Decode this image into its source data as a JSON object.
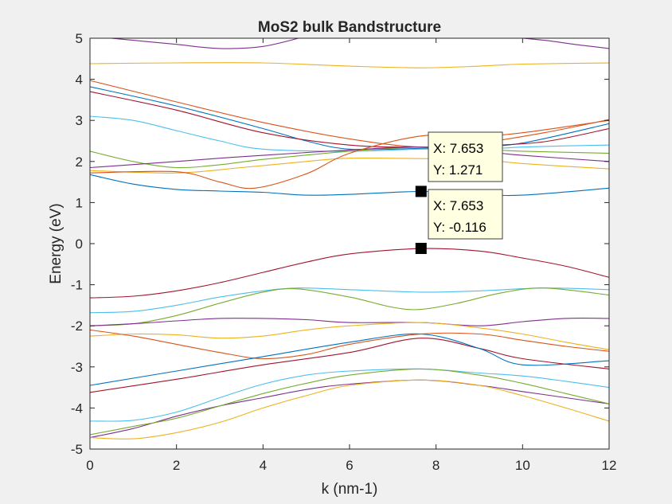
{
  "chart_data": {
    "type": "line",
    "title": "MoS2 bulk Bandstructure",
    "xlabel": "k (nm-1)",
    "ylabel": "Energy (eV)",
    "xlim": [
      0,
      12
    ],
    "ylim": [
      -5,
      5
    ],
    "xticks": [
      "0",
      "2",
      "4",
      "6",
      "8",
      "10",
      "12"
    ],
    "yticks": [
      "5",
      "4",
      "3",
      "2",
      "1",
      "0",
      "-1",
      "-2",
      "-3",
      "-4",
      "-5"
    ],
    "grid": false,
    "legend": "none",
    "colors": {
      "blue": "#0072BD",
      "orange": "#D95319",
      "yellow": "#EDB120",
      "purple": "#7E2F8E",
      "green": "#77AC30",
      "cyan": "#4DBEEE",
      "red": "#A2142F"
    },
    "series": [
      {
        "color": "purple",
        "x": [
          0,
          1,
          2,
          3,
          4,
          5
        ],
        "y": [
          5.05,
          4.95,
          4.85,
          4.75,
          4.8,
          5.05
        ]
      },
      {
        "color": "purple",
        "x": [
          9.5,
          10.5,
          11.2,
          12
        ],
        "y": [
          5.05,
          4.95,
          4.85,
          4.75
        ]
      },
      {
        "color": "yellow",
        "x": [
          0,
          2,
          4,
          6,
          7.65,
          9,
          10,
          12
        ],
        "y": [
          4.38,
          4.4,
          4.4,
          4.32,
          4.28,
          4.32,
          4.37,
          4.4
        ]
      },
      {
        "color": "orange",
        "x": [
          0,
          2,
          4,
          6,
          7.65,
          9,
          10.5,
          12
        ],
        "y": [
          3.97,
          3.45,
          2.95,
          2.55,
          2.35,
          2.45,
          2.7,
          3.02
        ]
      },
      {
        "color": "blue",
        "x": [
          0,
          2,
          4,
          5,
          6,
          7.65,
          9,
          10,
          12
        ],
        "y": [
          3.82,
          3.35,
          2.8,
          2.5,
          2.3,
          2.32,
          2.37,
          2.45,
          2.92
        ]
      },
      {
        "color": "red",
        "x": [
          0,
          2,
          4,
          6,
          7.65,
          9,
          10.5,
          12
        ],
        "y": [
          3.7,
          3.25,
          2.7,
          2.4,
          2.35,
          2.38,
          2.48,
          2.8
        ]
      },
      {
        "color": "cyan",
        "x": [
          0,
          1,
          2,
          3,
          4,
          6,
          7.65,
          9,
          10,
          11,
          12
        ],
        "y": [
          3.1,
          3.0,
          2.75,
          2.5,
          2.3,
          2.25,
          2.3,
          2.3,
          2.35,
          2.38,
          2.4
        ]
      },
      {
        "color": "green",
        "x": [
          0,
          1,
          2,
          3,
          4,
          6,
          7.65,
          9,
          10,
          12
        ],
        "y": [
          2.25,
          2.0,
          1.85,
          1.92,
          2.05,
          2.25,
          2.35,
          2.3,
          2.25,
          2.2
        ]
      },
      {
        "color": "purple",
        "x": [
          0,
          2,
          3,
          4,
          6,
          7.65,
          9,
          10,
          12
        ],
        "y": [
          1.85,
          2.0,
          2.08,
          2.15,
          2.28,
          2.35,
          2.25,
          2.15,
          2.0
        ]
      },
      {
        "color": "yellow",
        "x": [
          0,
          2,
          3.5,
          5,
          6,
          7.65,
          9,
          10,
          12
        ],
        "y": [
          1.78,
          1.72,
          1.85,
          2.0,
          2.08,
          2.07,
          2.05,
          1.95,
          1.82
        ]
      },
      {
        "color": "orange",
        "x": [
          0,
          2,
          3,
          3.8,
          5,
          6,
          7.65,
          9,
          10,
          12
        ],
        "y": [
          1.72,
          1.75,
          1.5,
          1.35,
          1.7,
          2.2,
          2.62,
          2.62,
          2.7,
          3.0
        ]
      },
      {
        "color": "blue",
        "x": [
          0,
          1,
          2,
          3,
          4,
          5,
          6,
          7.65,
          9,
          10,
          12
        ],
        "y": [
          1.68,
          1.45,
          1.32,
          1.28,
          1.25,
          1.18,
          1.2,
          1.27,
          1.2,
          1.18,
          1.35
        ]
      },
      {
        "color": "red",
        "x": [
          0,
          1,
          2,
          3,
          4,
          5,
          6,
          7.65,
          9,
          10,
          11,
          12
        ],
        "y": [
          -1.32,
          -1.28,
          -1.15,
          -0.95,
          -0.7,
          -0.45,
          -0.25,
          -0.12,
          -0.18,
          -0.35,
          -0.55,
          -0.82
        ]
      },
      {
        "color": "cyan",
        "x": [
          0,
          1,
          2,
          3,
          4,
          4.8,
          6,
          7.65,
          9,
          10.5,
          12
        ],
        "y": [
          -1.68,
          -1.65,
          -1.5,
          -1.3,
          -1.15,
          -1.08,
          -1.12,
          -1.18,
          -1.15,
          -1.08,
          -1.12
        ]
      },
      {
        "color": "green",
        "x": [
          0,
          1,
          2,
          3,
          4,
          4.8,
          6,
          7,
          7.65,
          8.5,
          9.5,
          10.5,
          12
        ],
        "y": [
          -2.0,
          -1.95,
          -1.75,
          -1.45,
          -1.18,
          -1.1,
          -1.3,
          -1.55,
          -1.6,
          -1.45,
          -1.2,
          -1.08,
          -1.25
        ]
      },
      {
        "color": "purple",
        "x": [
          0,
          1,
          2,
          3,
          4,
          5,
          6,
          7.65,
          9,
          10,
          11,
          12
        ],
        "y": [
          -2.0,
          -1.95,
          -1.88,
          -1.82,
          -1.82,
          -1.85,
          -1.92,
          -1.92,
          -2.0,
          -1.9,
          -1.82,
          -1.82
        ]
      },
      {
        "color": "yellow",
        "x": [
          0,
          1,
          2,
          3,
          4,
          5,
          6,
          7.65,
          9,
          10,
          11,
          12
        ],
        "y": [
          -2.25,
          -2.2,
          -2.22,
          -2.3,
          -2.25,
          -2.1,
          -2.0,
          -1.92,
          -2.05,
          -2.2,
          -2.4,
          -2.58
        ]
      },
      {
        "color": "orange",
        "x": [
          0,
          1,
          2,
          3,
          4,
          5,
          6,
          7.65,
          9,
          10,
          11,
          12
        ],
        "y": [
          -2.1,
          -2.25,
          -2.45,
          -2.65,
          -2.8,
          -2.7,
          -2.45,
          -2.2,
          -2.2,
          -2.35,
          -2.5,
          -2.62
        ]
      },
      {
        "color": "red",
        "x": [
          0,
          2,
          4,
          6,
          7.65,
          9,
          10,
          12
        ],
        "y": [
          -3.62,
          -3.3,
          -2.95,
          -2.65,
          -2.3,
          -2.55,
          -2.8,
          -3.05
        ]
      },
      {
        "color": "blue",
        "x": [
          0,
          2,
          4,
          6,
          7.65,
          9,
          10,
          12
        ],
        "y": [
          -3.45,
          -3.1,
          -2.75,
          -2.4,
          -2.2,
          -2.55,
          -2.95,
          -2.85
        ]
      },
      {
        "color": "cyan",
        "x": [
          0,
          1,
          2,
          3,
          4,
          5,
          6,
          7.65,
          9,
          10,
          11,
          12
        ],
        "y": [
          -4.32,
          -4.3,
          -4.1,
          -3.75,
          -3.42,
          -3.2,
          -3.1,
          -3.05,
          -3.15,
          -3.22,
          -3.35,
          -3.5
        ]
      },
      {
        "color": "purple",
        "x": [
          0,
          1,
          2,
          3,
          4,
          5,
          6,
          7.65,
          9,
          10,
          11,
          12
        ],
        "y": [
          -4.72,
          -4.5,
          -4.2,
          -3.95,
          -3.75,
          -3.55,
          -3.42,
          -3.32,
          -3.45,
          -3.6,
          -3.75,
          -3.9
        ]
      },
      {
        "color": "green",
        "x": [
          0,
          1,
          2,
          3,
          4,
          5,
          6,
          7.65,
          9,
          10,
          11,
          12
        ],
        "y": [
          -4.65,
          -4.45,
          -4.25,
          -3.95,
          -3.65,
          -3.4,
          -3.2,
          -3.05,
          -3.2,
          -3.4,
          -3.65,
          -3.9
        ]
      },
      {
        "color": "yellow",
        "x": [
          0,
          1,
          2,
          3,
          4,
          5,
          6,
          7.65,
          9,
          10,
          11,
          12
        ],
        "y": [
          -4.72,
          -4.75,
          -4.6,
          -4.35,
          -4.0,
          -3.7,
          -3.45,
          -3.32,
          -3.45,
          -3.7,
          -4.0,
          -4.32
        ]
      }
    ],
    "datatips": [
      {
        "x": 7.653,
        "y": 1.271,
        "x_text": "X: 7.653",
        "y_text": "Y: 1.271"
      },
      {
        "x": 7.653,
        "y": -0.116,
        "x_text": "X: 7.653",
        "y_text": "Y: -0.116"
      }
    ]
  }
}
